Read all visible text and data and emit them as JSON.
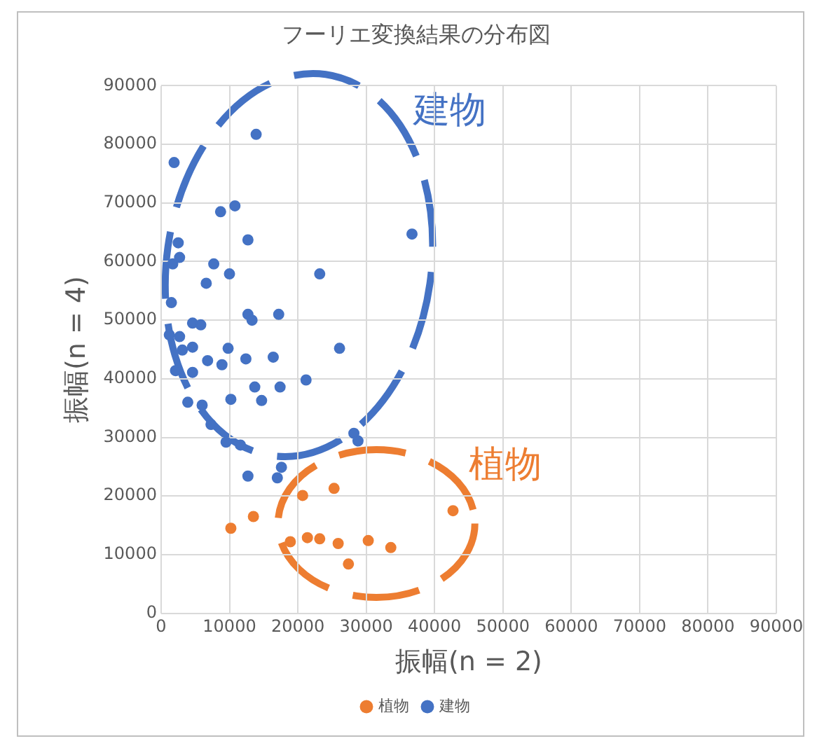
{
  "chart_data": {
    "type": "scatter",
    "title": "フーリエ変換結果の分布図",
    "xlabel": "振幅(n = 2)",
    "ylabel": "振幅(n = 4)",
    "xlim": [
      0,
      90000
    ],
    "xticks": [
      0,
      10000,
      20000,
      30000,
      40000,
      50000,
      60000,
      70000,
      80000,
      90000
    ],
    "ylim": [
      0,
      90000
    ],
    "yticks": [
      0,
      10000,
      20000,
      30000,
      40000,
      50000,
      60000,
      70000,
      80000,
      90000
    ],
    "grid": true,
    "legend": "bottom",
    "marker": "circle",
    "annotations": [
      "建物",
      "植物"
    ],
    "series": [
      {
        "name": "植物",
        "color": "#ed7d31",
        "x": [
          10200,
          13500,
          20700,
          25300,
          42700,
          18900,
          21400,
          23200,
          25900,
          30300,
          33600,
          27400
        ],
        "values": [
          14500,
          16500,
          20100,
          21300,
          17500,
          12200,
          12900,
          12700,
          11900,
          12400,
          11200,
          8400
        ]
      },
      {
        "name": "建物",
        "color": "#4472c4",
        "x": [
          1900,
          13900,
          8700,
          10800,
          2500,
          2700,
          1700,
          12700,
          7700,
          6600,
          10000,
          23200,
          36700,
          1500,
          12700,
          13300,
          17200,
          4600,
          5800,
          1200,
          2700,
          3100,
          4600,
          6800,
          8900,
          9800,
          12400,
          16400,
          26100,
          2100,
          4600,
          21200,
          13700,
          17400,
          10200,
          14700,
          3900,
          6000,
          7300,
          9500,
          11600,
          28200,
          28800,
          12700,
          17000,
          17600
        ],
        "values": [
          76900,
          81700,
          68500,
          69500,
          63200,
          60700,
          59600,
          63700,
          59600,
          56300,
          57900,
          57900,
          64700,
          53000,
          51000,
          50000,
          51000,
          49500,
          49200,
          47500,
          47200,
          44900,
          45400,
          43100,
          42400,
          45200,
          43400,
          43700,
          45200,
          41400,
          41100,
          39800,
          38600,
          38600,
          36500,
          36300,
          36000,
          35500,
          32200,
          29200,
          28700,
          30700,
          29400,
          23400,
          23100,
          24900
        ]
      }
    ]
  }
}
